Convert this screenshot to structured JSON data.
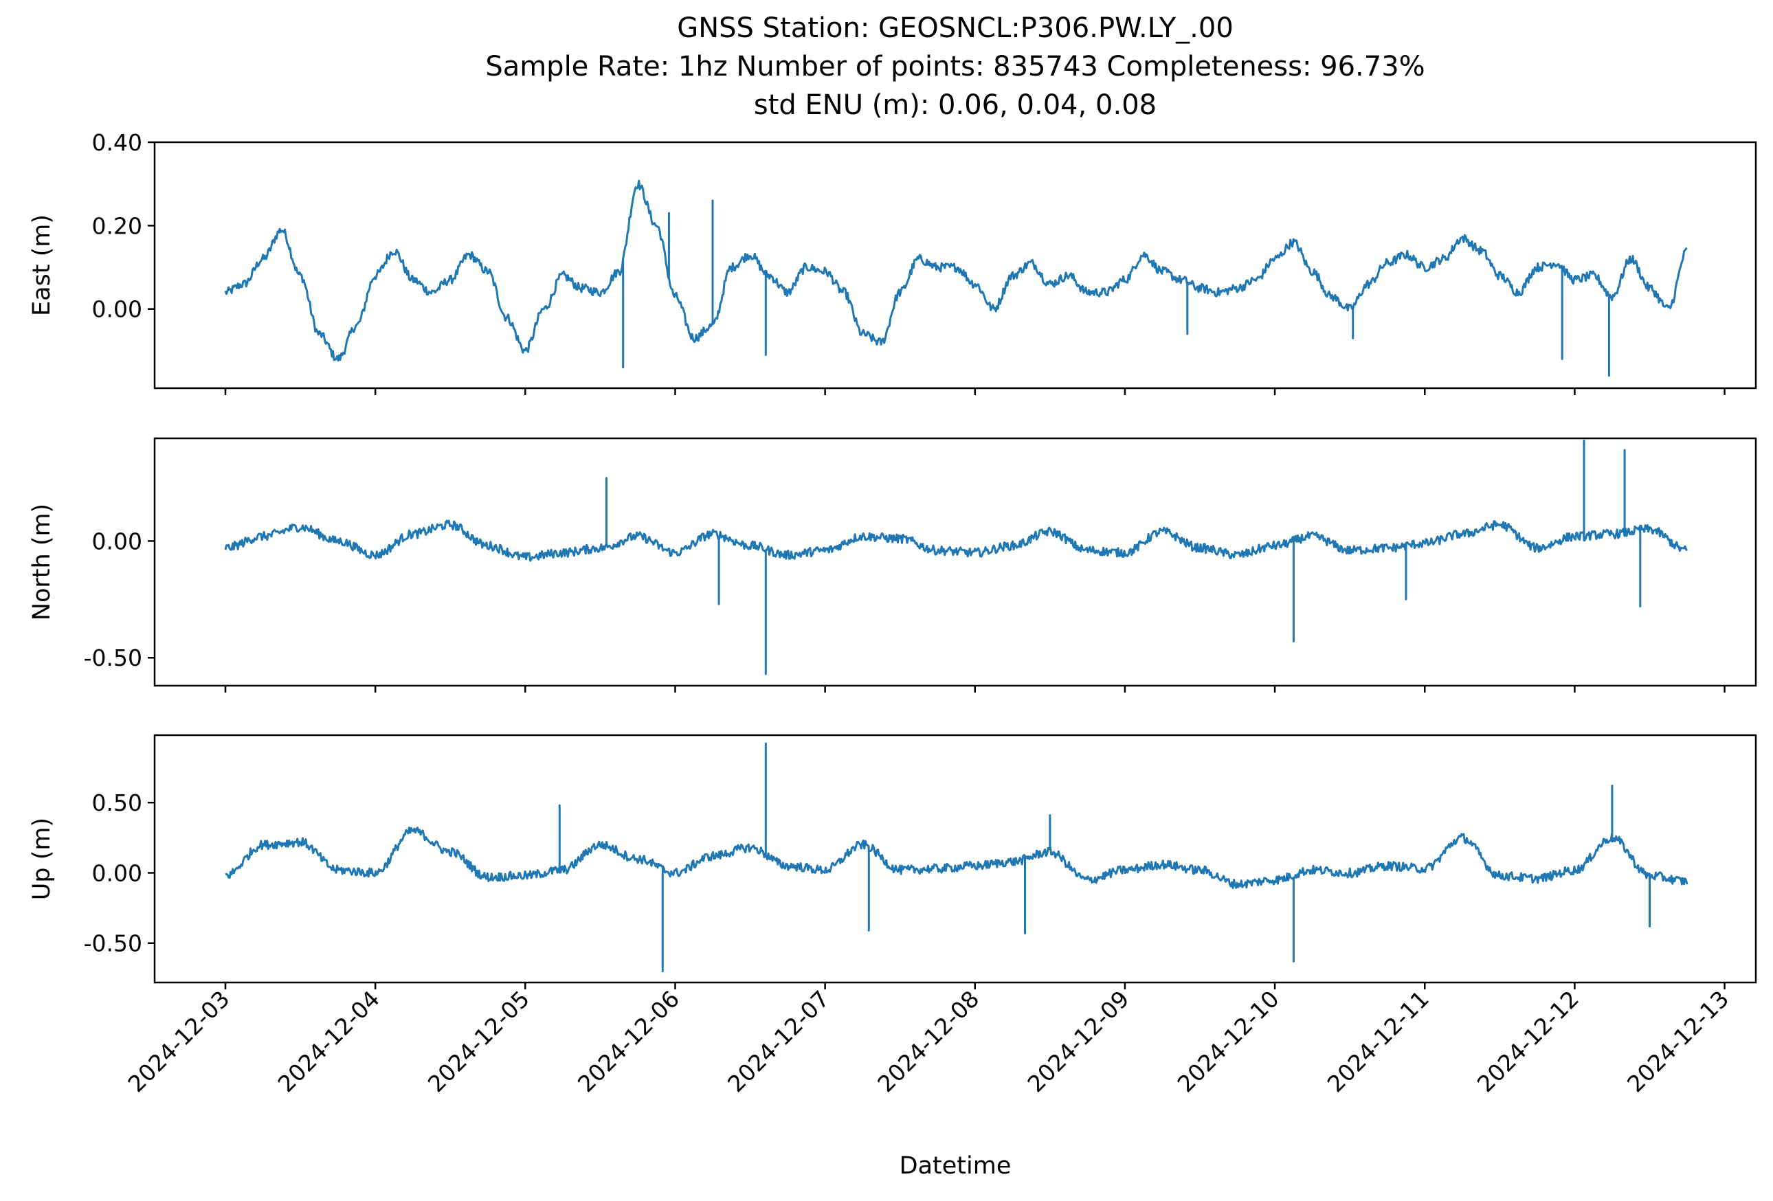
{
  "title": {
    "line1": "GNSS Station: GEOSNCL:P306.PW.LY_.00",
    "line2": "Sample Rate: 1hz   Number of points: 835743    Completeness:  96.73%",
    "line3": "std ENU (m):  0.06, 0.04, 0.08"
  },
  "colors": {
    "series": "#1f77b4"
  },
  "chart_data": {
    "type": "line",
    "xlabel": "Datetime",
    "xlim": [
      "2024-12-02T12:40",
      "2024-12-13T05:00"
    ],
    "x_ticks": [
      "2024-12-03",
      "2024-12-04",
      "2024-12-05",
      "2024-12-06",
      "2024-12-07",
      "2024-12-08",
      "2024-12-09",
      "2024-12-10",
      "2024-12-11",
      "2024-12-12",
      "2024-12-13"
    ],
    "sharex": true,
    "grid": false,
    "panels": [
      {
        "ylabel": "East (m)",
        "ylim": [
          -0.19,
          0.4
        ],
        "yticks": [
          0.0,
          0.2,
          0.4
        ],
        "ytick_labels": [
          "0.00",
          "0.20",
          "0.40"
        ],
        "x": [
          "2024-12-03T00:00",
          "2024-12-03T03:00",
          "2024-12-03T06:00",
          "2024-12-03T09:00",
          "2024-12-03T12:00",
          "2024-12-03T15:00",
          "2024-12-03T18:00",
          "2024-12-03T21:00",
          "2024-12-04T00:00",
          "2024-12-04T03:00",
          "2024-12-04T06:00",
          "2024-12-04T09:00",
          "2024-12-04T12:00",
          "2024-12-04T15:00",
          "2024-12-04T18:00",
          "2024-12-04T21:00",
          "2024-12-05T00:00",
          "2024-12-05T03:00",
          "2024-12-05T06:00",
          "2024-12-05T09:00",
          "2024-12-05T12:00",
          "2024-12-05T15:00",
          "2024-12-05T18:00",
          "2024-12-05T21:00",
          "2024-12-06T00:00",
          "2024-12-06T03:00",
          "2024-12-06T06:00",
          "2024-12-06T09:00",
          "2024-12-06T12:00",
          "2024-12-06T15:00",
          "2024-12-06T18:00",
          "2024-12-06T21:00",
          "2024-12-07T00:00",
          "2024-12-07T03:00",
          "2024-12-07T06:00",
          "2024-12-07T09:00",
          "2024-12-07T12:00",
          "2024-12-07T15:00",
          "2024-12-07T18:00",
          "2024-12-07T21:00",
          "2024-12-08T00:00",
          "2024-12-08T03:00",
          "2024-12-08T06:00",
          "2024-12-08T09:00",
          "2024-12-08T12:00",
          "2024-12-08T15:00",
          "2024-12-08T18:00",
          "2024-12-08T21:00",
          "2024-12-09T00:00",
          "2024-12-09T03:00",
          "2024-12-09T06:00",
          "2024-12-09T09:00",
          "2024-12-09T12:00",
          "2024-12-09T15:00",
          "2024-12-09T18:00",
          "2024-12-09T21:00",
          "2024-12-10T00:00",
          "2024-12-10T03:00",
          "2024-12-10T06:00",
          "2024-12-10T09:00",
          "2024-12-10T12:00",
          "2024-12-10T15:00",
          "2024-12-10T18:00",
          "2024-12-10T21:00",
          "2024-12-11T00:00",
          "2024-12-11T03:00",
          "2024-12-11T06:00",
          "2024-12-11T09:00",
          "2024-12-11T12:00",
          "2024-12-11T15:00",
          "2024-12-11T18:00",
          "2024-12-11T21:00",
          "2024-12-12T00:00",
          "2024-12-12T03:00",
          "2024-12-12T06:00",
          "2024-12-12T09:00",
          "2024-12-12T12:00",
          "2024-12-12T15:00",
          "2024-12-12T18:00"
        ],
        "y": [
          0.04,
          0.06,
          0.12,
          0.19,
          0.08,
          -0.06,
          -0.12,
          -0.04,
          0.08,
          0.14,
          0.07,
          0.04,
          0.07,
          0.13,
          0.09,
          -0.02,
          -0.1,
          0.0,
          0.08,
          0.05,
          0.04,
          0.09,
          0.3,
          0.2,
          0.03,
          -0.07,
          -0.04,
          0.1,
          0.13,
          0.08,
          0.04,
          0.1,
          0.09,
          0.04,
          -0.06,
          -0.08,
          0.04,
          0.12,
          0.1,
          0.1,
          0.06,
          0.0,
          0.08,
          0.11,
          0.06,
          0.08,
          0.04,
          0.04,
          0.07,
          0.13,
          0.09,
          0.07,
          0.05,
          0.04,
          0.05,
          0.07,
          0.12,
          0.16,
          0.09,
          0.03,
          0.0,
          0.06,
          0.11,
          0.13,
          0.1,
          0.12,
          0.17,
          0.14,
          0.08,
          0.04,
          0.1,
          0.11,
          0.07,
          0.08,
          0.03,
          0.12,
          0.05,
          0.0,
          0.14
        ],
        "spikes": [
          [
            "2024-12-05T15:40",
            -0.14
          ],
          [
            "2024-12-05T23:00",
            0.23
          ],
          [
            "2024-12-06T06:00",
            0.26
          ],
          [
            "2024-12-06T14:30",
            -0.11
          ],
          [
            "2024-12-09T10:00",
            -0.06
          ],
          [
            "2024-12-10T12:30",
            -0.07
          ],
          [
            "2024-12-11T22:00",
            -0.12
          ],
          [
            "2024-12-12T05:30",
            -0.16
          ]
        ]
      },
      {
        "ylabel": "North (m)",
        "ylim": [
          -0.62,
          0.44
        ],
        "yticks": [
          0.0,
          -0.5
        ],
        "ytick_labels": [
          "0.00",
          "-0.50"
        ],
        "x": [
          "2024-12-03T00:00",
          "2024-12-03T06:00",
          "2024-12-03T12:00",
          "2024-12-03T18:00",
          "2024-12-04T00:00",
          "2024-12-04T06:00",
          "2024-12-04T12:00",
          "2024-12-04T18:00",
          "2024-12-05T00:00",
          "2024-12-05T06:00",
          "2024-12-05T12:00",
          "2024-12-05T18:00",
          "2024-12-06T00:00",
          "2024-12-06T06:00",
          "2024-12-06T12:00",
          "2024-12-06T18:00",
          "2024-12-07T00:00",
          "2024-12-07T06:00",
          "2024-12-07T12:00",
          "2024-12-07T18:00",
          "2024-12-08T00:00",
          "2024-12-08T06:00",
          "2024-12-08T12:00",
          "2024-12-08T18:00",
          "2024-12-09T00:00",
          "2024-12-09T06:00",
          "2024-12-09T12:00",
          "2024-12-09T18:00",
          "2024-12-10T00:00",
          "2024-12-10T06:00",
          "2024-12-10T12:00",
          "2024-12-10T18:00",
          "2024-12-11T00:00",
          "2024-12-11T06:00",
          "2024-12-11T12:00",
          "2024-12-11T18:00",
          "2024-12-12T00:00",
          "2024-12-12T06:00",
          "2024-12-12T12:00",
          "2024-12-12T18:00"
        ],
        "y": [
          -0.03,
          0.02,
          0.06,
          0.0,
          -0.06,
          0.03,
          0.07,
          -0.02,
          -0.07,
          -0.05,
          -0.03,
          0.02,
          -0.05,
          0.03,
          -0.02,
          -0.06,
          -0.04,
          0.02,
          0.01,
          -0.04,
          -0.05,
          -0.02,
          0.04,
          -0.04,
          -0.05,
          0.04,
          -0.03,
          -0.06,
          -0.02,
          0.02,
          -0.04,
          -0.03,
          -0.01,
          0.03,
          0.07,
          -0.03,
          0.02,
          0.03,
          0.05,
          -0.04
        ],
        "spikes": [
          [
            "2024-12-05T13:00",
            0.27
          ],
          [
            "2024-12-06T07:00",
            -0.27
          ],
          [
            "2024-12-06T14:30",
            -0.57
          ],
          [
            "2024-12-10T03:00",
            -0.43
          ],
          [
            "2024-12-10T21:00",
            -0.25
          ],
          [
            "2024-12-12T01:30",
            0.43
          ],
          [
            "2024-12-12T08:00",
            0.39
          ],
          [
            "2024-12-12T10:30",
            -0.28
          ]
        ]
      },
      {
        "ylabel": "Up (m)",
        "ylim": [
          -0.78,
          0.98
        ],
        "yticks": [
          0.5,
          0.0,
          -0.5
        ],
        "ytick_labels": [
          "0.50",
          "0.00",
          "-0.50"
        ],
        "x": [
          "2024-12-03T00:00",
          "2024-12-03T06:00",
          "2024-12-03T12:00",
          "2024-12-03T18:00",
          "2024-12-04T00:00",
          "2024-12-04T06:00",
          "2024-12-04T12:00",
          "2024-12-04T18:00",
          "2024-12-05T00:00",
          "2024-12-05T06:00",
          "2024-12-05T12:00",
          "2024-12-05T18:00",
          "2024-12-06T00:00",
          "2024-12-06T06:00",
          "2024-12-06T12:00",
          "2024-12-06T18:00",
          "2024-12-07T00:00",
          "2024-12-07T06:00",
          "2024-12-07T12:00",
          "2024-12-07T18:00",
          "2024-12-08T00:00",
          "2024-12-08T06:00",
          "2024-12-08T12:00",
          "2024-12-08T18:00",
          "2024-12-09T00:00",
          "2024-12-09T06:00",
          "2024-12-09T12:00",
          "2024-12-09T18:00",
          "2024-12-10T00:00",
          "2024-12-10T06:00",
          "2024-12-10T12:00",
          "2024-12-10T18:00",
          "2024-12-11T00:00",
          "2024-12-11T06:00",
          "2024-12-11T12:00",
          "2024-12-11T18:00",
          "2024-12-12T00:00",
          "2024-12-12T06:00",
          "2024-12-12T12:00",
          "2024-12-12T18:00"
        ],
        "y": [
          -0.02,
          0.2,
          0.22,
          0.02,
          0.0,
          0.3,
          0.15,
          -0.03,
          -0.02,
          0.02,
          0.2,
          0.1,
          0.0,
          0.12,
          0.18,
          0.05,
          0.02,
          0.2,
          0.02,
          0.03,
          0.05,
          0.08,
          0.15,
          -0.05,
          0.02,
          0.06,
          0.02,
          -0.08,
          -0.05,
          0.02,
          0.0,
          0.05,
          0.03,
          0.25,
          -0.02,
          -0.04,
          0.02,
          0.25,
          -0.02,
          -0.06
        ],
        "spikes": [
          [
            "2024-12-05T05:30",
            0.48
          ],
          [
            "2024-12-05T22:00",
            -0.7
          ],
          [
            "2024-12-06T14:30",
            0.92
          ],
          [
            "2024-12-07T07:00",
            -0.41
          ],
          [
            "2024-12-08T08:00",
            -0.43
          ],
          [
            "2024-12-08T12:00",
            0.41
          ],
          [
            "2024-12-10T03:00",
            -0.63
          ],
          [
            "2024-12-12T06:00",
            0.62
          ],
          [
            "2024-12-12T12:00",
            -0.38
          ]
        ]
      }
    ]
  }
}
